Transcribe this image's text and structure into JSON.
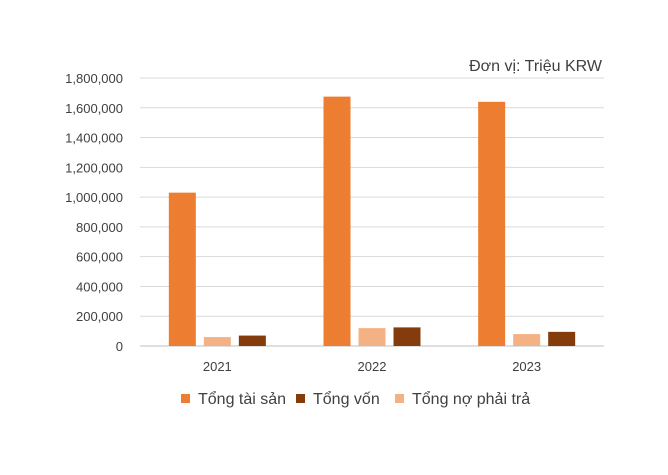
{
  "chart_data": {
    "type": "bar",
    "unit_label": "Đơn vị: Triệu KRW",
    "categories": [
      "2021",
      "2022",
      "2023"
    ],
    "series": [
      {
        "name": "Tổng tài sản",
        "color": "#ED7D31",
        "values": [
          1030000,
          1675000,
          1640000
        ]
      },
      {
        "name": "Tổng vốn",
        "color": "#843C0C",
        "values": [
          70000,
          125000,
          95000
        ]
      },
      {
        "name": "Tổng nợ phải trả",
        "color": "#F4B183",
        "values": [
          60000,
          120000,
          80000
        ]
      }
    ],
    "draw_order": [
      0,
      2,
      1
    ],
    "ylim": [
      0,
      1800000
    ],
    "yticks": [
      "0",
      "200,000",
      "400,000",
      "600,000",
      "800,000",
      "1,000,000",
      "1,200,000",
      "1,400,000",
      "1,600,000",
      "1,800,000"
    ],
    "ytick_values": [
      0,
      200000,
      400000,
      600000,
      800000,
      1000000,
      1200000,
      1400000,
      1600000,
      1800000
    ],
    "grid": true,
    "legend_position": "bottom"
  }
}
